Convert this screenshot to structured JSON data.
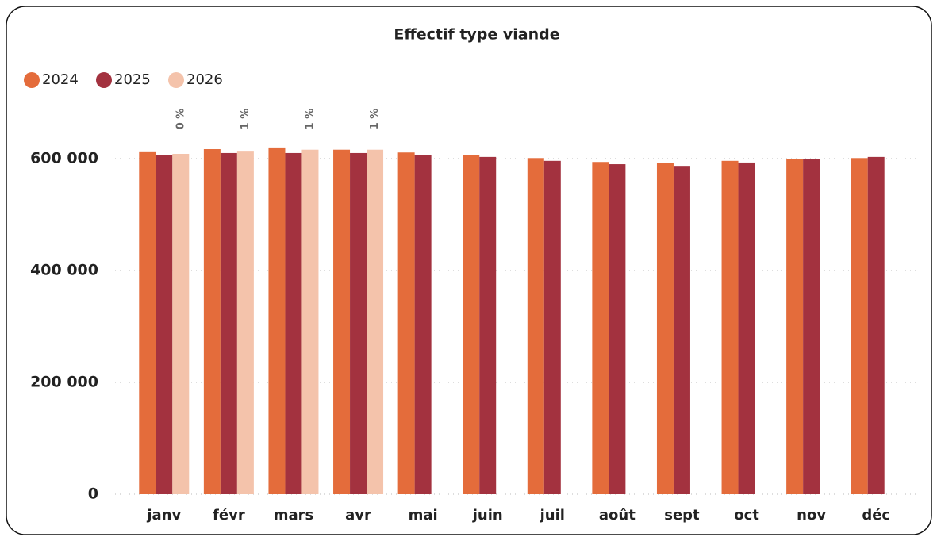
{
  "chart_data": {
    "type": "bar",
    "title": "Effectif type viande",
    "categories": [
      "janv",
      "févr",
      "mars",
      "avr",
      "mai",
      "juin",
      "juil",
      "août",
      "sept",
      "oct",
      "nov",
      "déc"
    ],
    "series": [
      {
        "name": "2024",
        "color": "#e46c3b",
        "values": [
          613000,
          617000,
          620000,
          616000,
          611000,
          607000,
          601000,
          594000,
          592000,
          596000,
          600000,
          601000
        ]
      },
      {
        "name": "2025",
        "color": "#a3323f",
        "values": [
          607000,
          610000,
          610000,
          610000,
          606000,
          603000,
          596000,
          590000,
          587000,
          593000,
          599000,
          603000
        ]
      },
      {
        "name": "2026",
        "color": "#f4c3ab",
        "values": [
          608500,
          614000,
          616000,
          616000,
          null,
          null,
          null,
          null,
          null,
          null,
          null,
          null
        ]
      }
    ],
    "change_labels": [
      "0 %",
      "1 %",
      "1 %",
      "1 %",
      null,
      null,
      null,
      null,
      null,
      null,
      null,
      null
    ],
    "ylim": [
      0,
      680000
    ],
    "yticks": [
      0,
      {
        "value": 200000,
        "label": "200 000"
      },
      {
        "value": 400000,
        "label": "400 000"
      },
      {
        "value": 600000,
        "label": "600 000"
      }
    ],
    "grid": true,
    "legend": "top-left"
  }
}
